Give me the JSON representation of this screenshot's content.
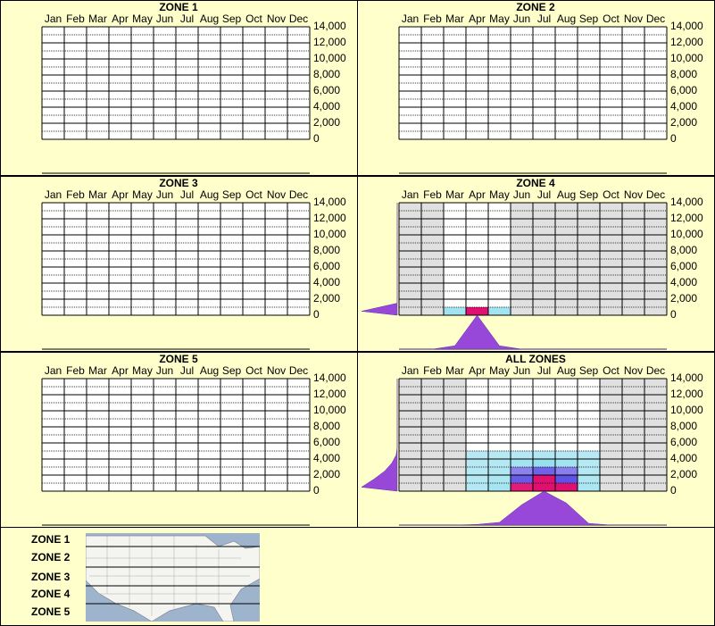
{
  "chart_data": [
    {
      "type": "heatmap",
      "title": "ZONE 1",
      "categories": [
        "Jan",
        "Feb",
        "Mar",
        "Apr",
        "May",
        "Jun",
        "Jul",
        "Aug",
        "Sep",
        "Oct",
        "Nov",
        "Dec"
      ],
      "ylim": [
        0,
        14000
      ],
      "yticks": [
        0,
        {
          "value": 2000,
          "label": "2,000"
        },
        {
          "value": 4000,
          "label": "4,000"
        },
        {
          "value": 6000,
          "label": "6,000"
        },
        {
          "value": 8000,
          "label": "8,000"
        },
        {
          "value": 10000,
          "label": "10,000"
        },
        {
          "value": 12000,
          "label": "12,000"
        },
        {
          "value": 14000,
          "label": "14,000"
        }
      ]
    },
    {
      "type": "heatmap",
      "title": "ZONE 2",
      "categories": [
        "Jan",
        "Feb",
        "Mar",
        "Apr",
        "May",
        "Jun",
        "Jul",
        "Aug",
        "Sep",
        "Oct",
        "Nov",
        "Dec"
      ],
      "ylim": [
        0,
        14000
      ],
      "yticks": [
        0,
        {
          "value": 2000,
          "label": "2,000"
        },
        {
          "value": 4000,
          "label": "4,000"
        },
        {
          "value": 6000,
          "label": "6,000"
        },
        {
          "value": 8000,
          "label": "8,000"
        },
        {
          "value": 10000,
          "label": "10,000"
        },
        {
          "value": 12000,
          "label": "12,000"
        },
        {
          "value": 14000,
          "label": "14,000"
        }
      ]
    },
    {
      "type": "heatmap",
      "title": "ZONE 3",
      "categories": [
        "Jan",
        "Feb",
        "Mar",
        "Apr",
        "May",
        "Jun",
        "Jul",
        "Aug",
        "Sep",
        "Oct",
        "Nov",
        "Dec"
      ],
      "ylim": [
        0,
        14000
      ],
      "yticks": [
        0,
        {
          "value": 2000,
          "label": "2,000"
        },
        {
          "value": 4000,
          "label": "4,000"
        },
        {
          "value": 6000,
          "label": "6,000"
        },
        {
          "value": 8000,
          "label": "8,000"
        },
        {
          "value": 10000,
          "label": "10,000"
        },
        {
          "value": 12000,
          "label": "12,000"
        },
        {
          "value": 14000,
          "label": "14,000"
        }
      ]
    },
    {
      "type": "heatmap",
      "title": "ZONE 4",
      "categories": [
        "Jan",
        "Feb",
        "Mar",
        "Apr",
        "May",
        "Jun",
        "Jul",
        "Aug",
        "Sep",
        "Oct",
        "Nov",
        "Dec"
      ],
      "ylim": [
        0,
        14000
      ],
      "yticks": [
        0,
        {
          "value": 2000,
          "label": "2,000"
        },
        {
          "value": 4000,
          "label": "4,000"
        },
        {
          "value": 6000,
          "label": "6,000"
        },
        {
          "value": 8000,
          "label": "8,000"
        },
        {
          "value": 10000,
          "label": "10,000"
        },
        {
          "value": 12000,
          "label": "12,000"
        },
        {
          "value": 14000,
          "label": "14,000"
        }
      ],
      "month_values": [
        0,
        0,
        0.1,
        1,
        0.1,
        0,
        0,
        0,
        0,
        0,
        0,
        0
      ],
      "elevation_values": [
        1,
        0,
        0,
        0,
        0,
        0,
        0,
        0,
        0,
        0,
        0,
        0,
        0,
        0
      ]
    },
    {
      "type": "heatmap",
      "title": "ZONE 5",
      "categories": [
        "Jan",
        "Feb",
        "Mar",
        "Apr",
        "May",
        "Jun",
        "Jul",
        "Aug",
        "Sep",
        "Oct",
        "Nov",
        "Dec"
      ],
      "ylim": [
        0,
        14000
      ],
      "yticks": [
        0,
        {
          "value": 2000,
          "label": "2,000"
        },
        {
          "value": 4000,
          "label": "4,000"
        },
        {
          "value": 6000,
          "label": "6,000"
        },
        {
          "value": 8000,
          "label": "8,000"
        },
        {
          "value": 10000,
          "label": "10,000"
        },
        {
          "value": 12000,
          "label": "12,000"
        },
        {
          "value": 14000,
          "label": "14,000"
        }
      ]
    },
    {
      "type": "heatmap",
      "title": "ALL ZONES",
      "categories": [
        "Jan",
        "Feb",
        "Mar",
        "Apr",
        "May",
        "Jun",
        "Jul",
        "Aug",
        "Sep",
        "Oct",
        "Nov",
        "Dec"
      ],
      "ylim": [
        0,
        14000
      ],
      "yticks": [
        0,
        {
          "value": 2000,
          "label": "2,000"
        },
        {
          "value": 4000,
          "label": "4,000"
        },
        {
          "value": 6000,
          "label": "6,000"
        },
        {
          "value": 8000,
          "label": "8,000"
        },
        {
          "value": 10000,
          "label": "10,000"
        },
        {
          "value": 12000,
          "label": "12,000"
        },
        {
          "value": 14000,
          "label": "14,000"
        }
      ],
      "month_values": [
        0,
        0,
        0,
        0.02,
        0.08,
        0.6,
        1,
        0.65,
        0.05,
        0,
        0,
        0
      ],
      "elevation_values": [
        1,
        0.65,
        0.35,
        0.15,
        0.03,
        0,
        0,
        0,
        0,
        0,
        0,
        0,
        0,
        0
      ]
    }
  ],
  "legend": {
    "zones": [
      "ZONE 1",
      "ZONE 2",
      "ZONE 3",
      "ZONE 4",
      "ZONE 5"
    ]
  }
}
